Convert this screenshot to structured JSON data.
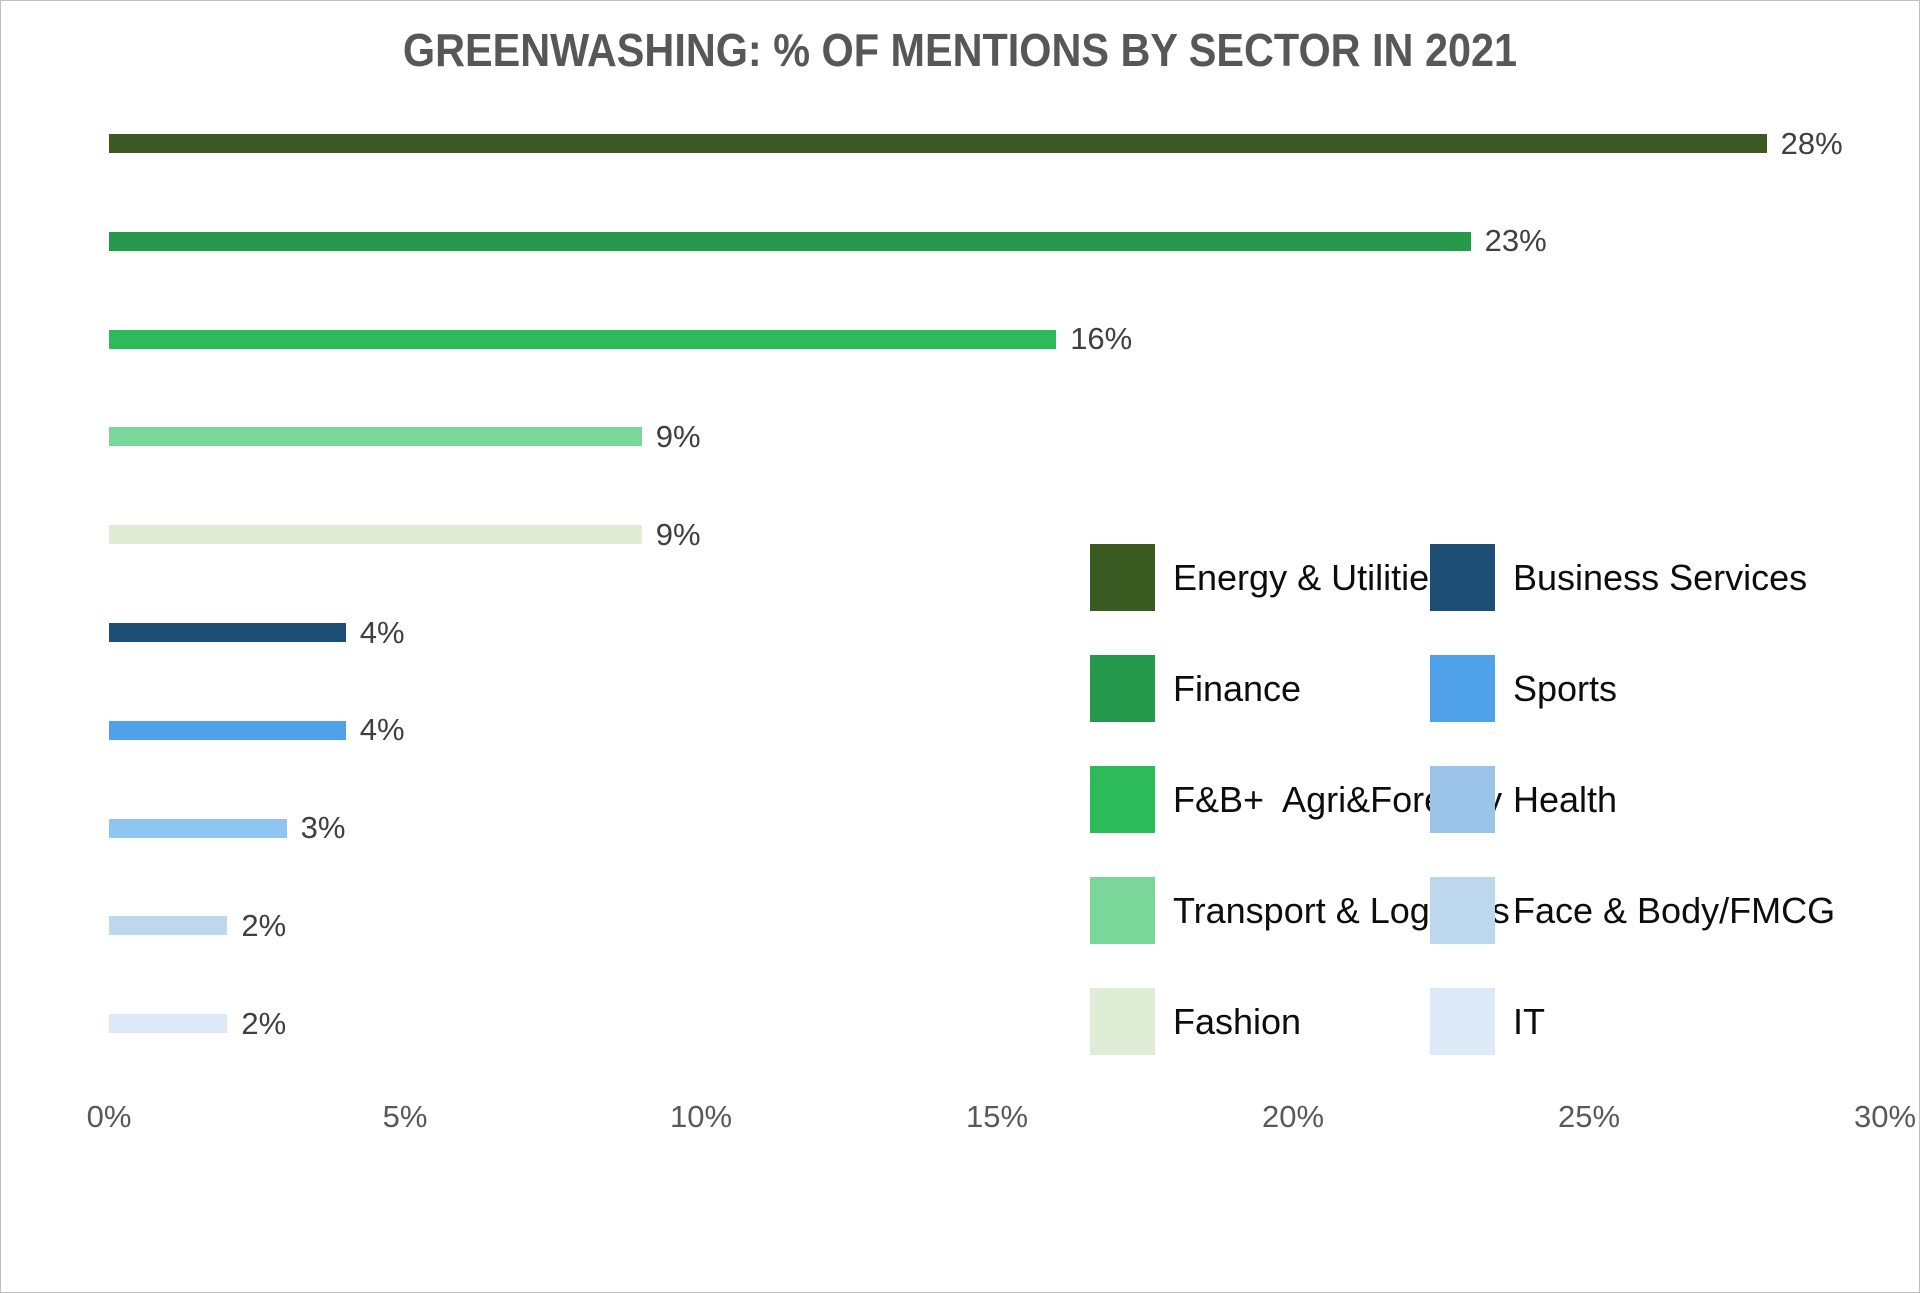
{
  "chart_data": {
    "type": "bar",
    "orientation": "horizontal",
    "title": "GREENWASHING: % OF MENTIONS BY SECTOR IN 2021",
    "categories": [
      "Energy & Utilities",
      "Finance",
      "F&B+ Agri&Forestry",
      "Transport & Logistics",
      "Fashion",
      "Business Services",
      "Sports",
      "Health",
      "Face & Body/FMCG",
      "IT"
    ],
    "values": [
      28,
      23,
      16,
      9,
      9,
      4,
      4,
      3,
      2,
      2
    ],
    "bar_labels": [
      "28%",
      "23%",
      "16%",
      "9%",
      "9%",
      "4%",
      "4%",
      "3%",
      "2%",
      "2%"
    ],
    "colors": [
      "#3A5A22",
      "#26984B",
      "#2CBA5B",
      "#7BD69A",
      "#DFEDD5",
      "#1F4E74",
      "#4FA2EA",
      "#8EC6F1",
      "#BCD7EE",
      "#DCE9F6"
    ],
    "unit": "%",
    "xlabel": "",
    "ylabel": "",
    "xlim": [
      0,
      30
    ],
    "x_ticks": [
      "0%",
      "5%",
      "10%",
      "15%",
      "20%",
      "25%",
      "30%"
    ],
    "grid": false,
    "value_labels_shown": true,
    "legend_position": "middle-right",
    "legend": {
      "items": [
        {
          "label": "Energy & Utilities",
          "color": "#3A5A22"
        },
        {
          "label": "Business Services",
          "color": "#1F4E74"
        },
        {
          "label": "Finance",
          "color": "#26984B"
        },
        {
          "label": "Sports",
          "color": "#4FA2EA"
        },
        {
          "label": "F&B+  Agri&Forestry",
          "color": "#2CBA5B"
        },
        {
          "label": "Health",
          "color": "#9CC3E8"
        },
        {
          "label": "Transport & Logistics",
          "color": "#7BD69A"
        },
        {
          "label": "Face & Body/FMCG",
          "color": "#BCD7EE"
        },
        {
          "label": "Fashion",
          "color": "#E0EDD6"
        },
        {
          "label": "IT",
          "color": "#DCE9F6"
        }
      ]
    },
    "text_colors": {
      "title": "#575757",
      "bar_value": "#404040",
      "axis_tick": "#595959",
      "legend_label": "#0d0d0d"
    }
  }
}
